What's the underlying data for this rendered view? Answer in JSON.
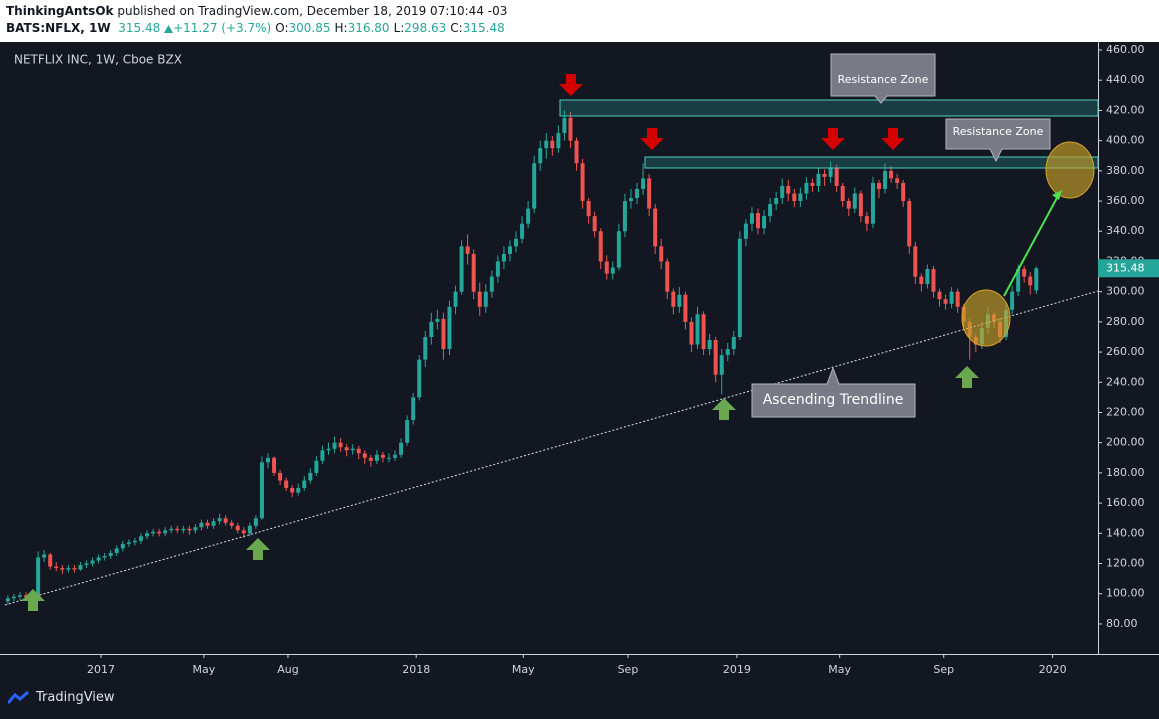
{
  "header": {
    "author": "ThinkingAntsOk",
    "published": "published on TradingView.com, December 18, 2019 07:10:44 -03",
    "symbol": "BATS:NFLX, 1W",
    "price": "315.48",
    "change": "+11.27 (+3.7%)",
    "ohlc": [
      [
        "O:",
        "300.85"
      ],
      [
        "H:",
        "316.80"
      ],
      [
        "L:",
        "298.63"
      ],
      [
        "C:",
        "315.48"
      ]
    ]
  },
  "footer": "TradingView",
  "annotations": {
    "zone1": "Resistance Zone",
    "zone2": "Resistance Zone",
    "trend": "Ascending Trendline"
  },
  "chart_data": {
    "type": "candlestick",
    "title": "NETFLIX INC, 1W, Cboe BZX",
    "up_color": "#26a69a",
    "down_color": "#ef5350",
    "xlim": [
      -1.3,
      180.2
    ],
    "ylim": [
      60.1,
      465.3
    ],
    "xticks": [
      {
        "value": 15.4,
        "label": "2017"
      },
      {
        "value": 32.4,
        "label": "May"
      },
      {
        "value": 46.3,
        "label": "Aug"
      },
      {
        "value": 67.5,
        "label": "2018"
      },
      {
        "value": 85.2,
        "label": "May"
      },
      {
        "value": 102.5,
        "label": "Sep"
      },
      {
        "value": 120.5,
        "label": "2019"
      },
      {
        "value": 137.5,
        "label": "May"
      },
      {
        "value": 154.7,
        "label": "Sep"
      },
      {
        "value": 172.7,
        "label": "2020"
      }
    ],
    "yticks": [
      {
        "value": 80,
        "label": "80.00"
      },
      {
        "value": 100,
        "label": "100.00"
      },
      {
        "value": 120,
        "label": "120.00"
      },
      {
        "value": 140,
        "label": "140.00"
      },
      {
        "value": 160,
        "label": "160.00"
      },
      {
        "value": 180,
        "label": "180.00"
      },
      {
        "value": 200,
        "label": "200.00"
      },
      {
        "value": 220,
        "label": "220.00"
      },
      {
        "value": 240,
        "label": "240.00"
      },
      {
        "value": 260,
        "label": "260.00"
      },
      {
        "value": 280,
        "label": "280.00"
      },
      {
        "value": 300,
        "label": "300.00"
      },
      {
        "value": 320,
        "label": "320.00"
      },
      {
        "value": 340,
        "label": "340.00"
      },
      {
        "value": 360,
        "label": "360.00"
      },
      {
        "value": 380,
        "label": "380.00"
      },
      {
        "value": 400,
        "label": "400.00"
      },
      {
        "value": 420,
        "label": "420.00"
      },
      {
        "value": 440,
        "label": "440.00"
      },
      {
        "value": 460,
        "label": "460.00"
      }
    ],
    "ohlc": [
      [
        95,
        99,
        93,
        97
      ],
      [
        97,
        100,
        95,
        98
      ],
      [
        98,
        101,
        96,
        99
      ],
      [
        99,
        101,
        96,
        98
      ],
      [
        98,
        101,
        96,
        99
      ],
      [
        99,
        128,
        98,
        124
      ],
      [
        124,
        129,
        121,
        126
      ],
      [
        126,
        127,
        116,
        118
      ],
      [
        118,
        121,
        115,
        117
      ],
      [
        117,
        119,
        113,
        116
      ],
      [
        116,
        119,
        114,
        117
      ],
      [
        117,
        119,
        114,
        116
      ],
      [
        116,
        121,
        115,
        119
      ],
      [
        119,
        122,
        117,
        120
      ],
      [
        120,
        124,
        118,
        122
      ],
      [
        122,
        126,
        120,
        124
      ],
      [
        124,
        127,
        122,
        125
      ],
      [
        125,
        129,
        123,
        127
      ],
      [
        127,
        132,
        125,
        130
      ],
      [
        130,
        135,
        128,
        133
      ],
      [
        133,
        136,
        131,
        134
      ],
      [
        134,
        137,
        132,
        135
      ],
      [
        135,
        140,
        133,
        138
      ],
      [
        138,
        142,
        136,
        140
      ],
      [
        140,
        143,
        138,
        141
      ],
      [
        141,
        143,
        138,
        140
      ],
      [
        140,
        144,
        138,
        142
      ],
      [
        142,
        145,
        140,
        143
      ],
      [
        143,
        145,
        140,
        142
      ],
      [
        142,
        145,
        140,
        143
      ],
      [
        143,
        145,
        139,
        142
      ],
      [
        142,
        146,
        140,
        144
      ],
      [
        144,
        149,
        142,
        147
      ],
      [
        147,
        149,
        143,
        145
      ],
      [
        145,
        150,
        143,
        148
      ],
      [
        148,
        153,
        146,
        150
      ],
      [
        150,
        152,
        145,
        147
      ],
      [
        147,
        149,
        143,
        145
      ],
      [
        145,
        147,
        140,
        142
      ],
      [
        142,
        144,
        137,
        140
      ],
      [
        140,
        147,
        138,
        145
      ],
      [
        145,
        152,
        143,
        150
      ],
      [
        150,
        191,
        149,
        187
      ],
      [
        187,
        193,
        183,
        190
      ],
      [
        190,
        191,
        178,
        180
      ],
      [
        180,
        182,
        172,
        175
      ],
      [
        175,
        177,
        168,
        170
      ],
      [
        170,
        172,
        164,
        167
      ],
      [
        167,
        173,
        165,
        170
      ],
      [
        170,
        178,
        168,
        175
      ],
      [
        175,
        183,
        173,
        180
      ],
      [
        180,
        191,
        178,
        188
      ],
      [
        188,
        198,
        186,
        195
      ],
      [
        195,
        200,
        192,
        196
      ],
      [
        196,
        204,
        193,
        200
      ],
      [
        200,
        203,
        194,
        197
      ],
      [
        197,
        199,
        191,
        195
      ],
      [
        195,
        199,
        192,
        196
      ],
      [
        196,
        198,
        189,
        193
      ],
      [
        193,
        195,
        186,
        190
      ],
      [
        190,
        192,
        184,
        188
      ],
      [
        188,
        195,
        186,
        192
      ],
      [
        192,
        194,
        187,
        190
      ],
      [
        190,
        193,
        187,
        190
      ],
      [
        190,
        195,
        188,
        192
      ],
      [
        192,
        203,
        190,
        200
      ],
      [
        200,
        218,
        198,
        215
      ],
      [
        215,
        233,
        212,
        230
      ],
      [
        230,
        258,
        228,
        255
      ],
      [
        255,
        274,
        250,
        270
      ],
      [
        270,
        286,
        265,
        280
      ],
      [
        280,
        288,
        275,
        282
      ],
      [
        282,
        286,
        255,
        262
      ],
      [
        262,
        294,
        258,
        290
      ],
      [
        290,
        304,
        285,
        300
      ],
      [
        300,
        334,
        298,
        330
      ],
      [
        330,
        338,
        318,
        325
      ],
      [
        325,
        328,
        295,
        300
      ],
      [
        300,
        306,
        284,
        290
      ],
      [
        290,
        305,
        286,
        300
      ],
      [
        300,
        314,
        296,
        310
      ],
      [
        310,
        324,
        306,
        320
      ],
      [
        320,
        330,
        315,
        325
      ],
      [
        325,
        334,
        320,
        330
      ],
      [
        330,
        340,
        326,
        335
      ],
      [
        335,
        350,
        332,
        345
      ],
      [
        345,
        360,
        342,
        355
      ],
      [
        355,
        390,
        352,
        385
      ],
      [
        385,
        400,
        380,
        395
      ],
      [
        395,
        405,
        388,
        400
      ],
      [
        400,
        403,
        390,
        395
      ],
      [
        395,
        410,
        392,
        405
      ],
      [
        405,
        420,
        400,
        415
      ],
      [
        415,
        419,
        395,
        400
      ],
      [
        400,
        402,
        380,
        385
      ],
      [
        385,
        388,
        355,
        360
      ],
      [
        360,
        362,
        345,
        350
      ],
      [
        350,
        353,
        336,
        340
      ],
      [
        340,
        342,
        315,
        320
      ],
      [
        320,
        324,
        308,
        312
      ],
      [
        312,
        320,
        308,
        316
      ],
      [
        316,
        345,
        314,
        340
      ],
      [
        340,
        365,
        336,
        360
      ],
      [
        360,
        368,
        355,
        362
      ],
      [
        362,
        372,
        358,
        368
      ],
      [
        368,
        385,
        364,
        375
      ],
      [
        375,
        378,
        350,
        355
      ],
      [
        355,
        358,
        325,
        330
      ],
      [
        330,
        335,
        315,
        320
      ],
      [
        320,
        322,
        295,
        300
      ],
      [
        300,
        302,
        285,
        290
      ],
      [
        290,
        303,
        286,
        298
      ],
      [
        298,
        300,
        275,
        280
      ],
      [
        280,
        283,
        260,
        265
      ],
      [
        265,
        290,
        262,
        285
      ],
      [
        285,
        287,
        258,
        262
      ],
      [
        262,
        272,
        258,
        268
      ],
      [
        268,
        270,
        240,
        245
      ],
      [
        245,
        262,
        232,
        258
      ],
      [
        258,
        266,
        254,
        262
      ],
      [
        262,
        274,
        258,
        270
      ],
      [
        270,
        340,
        268,
        335
      ],
      [
        335,
        348,
        330,
        345
      ],
      [
        345,
        356,
        340,
        352
      ],
      [
        352,
        355,
        338,
        342
      ],
      [
        342,
        354,
        338,
        350
      ],
      [
        350,
        362,
        346,
        358
      ],
      [
        358,
        366,
        354,
        362
      ],
      [
        362,
        375,
        358,
        370
      ],
      [
        370,
        374,
        360,
        365
      ],
      [
        365,
        368,
        356,
        360
      ],
      [
        360,
        369,
        356,
        365
      ],
      [
        365,
        376,
        361,
        372
      ],
      [
        372,
        375,
        366,
        370
      ],
      [
        370,
        382,
        366,
        378
      ],
      [
        378,
        381,
        370,
        376
      ],
      [
        376,
        386,
        372,
        382
      ],
      [
        382,
        384,
        366,
        370
      ],
      [
        370,
        372,
        356,
        360
      ],
      [
        360,
        362,
        350,
        355
      ],
      [
        355,
        369,
        352,
        365
      ],
      [
        365,
        367,
        346,
        350
      ],
      [
        350,
        353,
        340,
        345
      ],
      [
        345,
        376,
        342,
        372
      ],
      [
        372,
        374,
        362,
        368
      ],
      [
        368,
        385,
        365,
        380
      ],
      [
        380,
        383,
        372,
        375
      ],
      [
        375,
        378,
        368,
        372
      ],
      [
        372,
        374,
        356,
        360
      ],
      [
        360,
        362,
        325,
        330
      ],
      [
        330,
        333,
        305,
        310
      ],
      [
        310,
        312,
        300,
        305
      ],
      [
        305,
        318,
        302,
        315
      ],
      [
        315,
        317,
        296,
        300
      ],
      [
        300,
        302,
        290,
        295
      ],
      [
        295,
        298,
        288,
        292
      ],
      [
        292,
        303,
        289,
        300
      ],
      [
        300,
        302,
        286,
        290
      ],
      [
        290,
        292,
        276,
        280
      ],
      [
        280,
        282,
        255,
        270
      ],
      [
        270,
        272,
        260,
        265
      ],
      [
        265,
        280,
        262,
        276
      ],
      [
        276,
        290,
        272,
        285
      ],
      [
        285,
        287,
        276,
        280
      ],
      [
        280,
        283,
        266,
        270
      ],
      [
        270,
        292,
        268,
        288
      ],
      [
        288,
        304,
        285,
        300
      ],
      [
        300,
        318,
        297,
        315
      ],
      [
        315,
        317,
        306,
        310
      ],
      [
        310,
        313,
        298,
        304.21
      ],
      [
        300.85,
        316.8,
        298.63,
        315.48
      ]
    ]
  }
}
